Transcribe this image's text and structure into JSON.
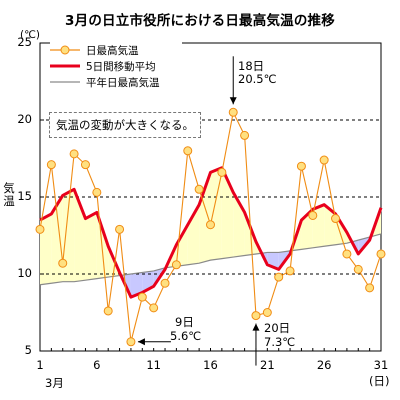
{
  "chart_data": {
    "type": "line",
    "title": "3月の日立市役所における日最高気温の推移",
    "ylabel": "気温",
    "y_unit": "(℃)",
    "x_month": "3月",
    "x_unit": "(日)",
    "ylim": [
      5,
      25
    ],
    "xlim": [
      1,
      31
    ],
    "y_ticks": [
      "5",
      "10",
      "15",
      "20",
      "25"
    ],
    "x_ticks": [
      "1",
      "6",
      "11",
      "16",
      "21",
      "26",
      "31"
    ],
    "dashed_gridlines_at": [
      10,
      15,
      20
    ],
    "x": [
      1,
      2,
      3,
      4,
      5,
      6,
      7,
      8,
      9,
      10,
      11,
      12,
      13,
      14,
      15,
      16,
      17,
      18,
      19,
      20,
      21,
      22,
      23,
      24,
      25,
      26,
      27,
      28,
      29,
      30,
      31
    ],
    "series": [
      {
        "name": "日最高気温",
        "color": "#f08c14",
        "marker_fill": "#ffe080",
        "values": [
          12.9,
          17.1,
          10.7,
          17.8,
          17.1,
          15.3,
          7.6,
          12.9,
          5.6,
          8.5,
          7.8,
          9.4,
          10.6,
          18.0,
          15.5,
          13.2,
          16.6,
          20.5,
          19.0,
          7.3,
          7.5,
          9.8,
          10.2,
          17.0,
          13.8,
          17.4,
          13.6,
          11.3,
          10.3,
          9.1,
          11.3
        ]
      },
      {
        "name": "5日間移動平均",
        "color": "#e8001c",
        "values": [
          13.5,
          13.9,
          15.1,
          15.5,
          13.6,
          14.0,
          11.8,
          10.1,
          8.5,
          8.8,
          9.2,
          10.3,
          11.9,
          13.2,
          14.5,
          16.6,
          16.9,
          15.3,
          14.0,
          12.1,
          10.6,
          10.3,
          11.3,
          13.5,
          14.2,
          14.5,
          13.9,
          12.7,
          11.3,
          12.2,
          14.3
        ]
      },
      {
        "name": "平年日最高気温",
        "color": "#8a8a8a",
        "values": [
          9.3,
          9.4,
          9.5,
          9.5,
          9.6,
          9.7,
          9.8,
          9.9,
          10.0,
          10.1,
          10.2,
          10.4,
          10.5,
          10.6,
          10.7,
          10.9,
          11.0,
          11.1,
          11.2,
          11.3,
          11.4,
          11.4,
          11.5,
          11.6,
          11.7,
          11.8,
          11.9,
          12.0,
          12.2,
          12.4,
          12.6
        ]
      }
    ],
    "fill_above_normal_color": "#ffffc8",
    "fill_below_normal_color": "#c8c8ff",
    "annotations": [
      {
        "day": "18日",
        "temp": "20.5℃"
      },
      {
        "day": "9日",
        "temp": "5.6℃"
      },
      {
        "day": "20日",
        "temp": "7.3℃"
      }
    ],
    "note": "気温の変動が大きくなる。"
  }
}
